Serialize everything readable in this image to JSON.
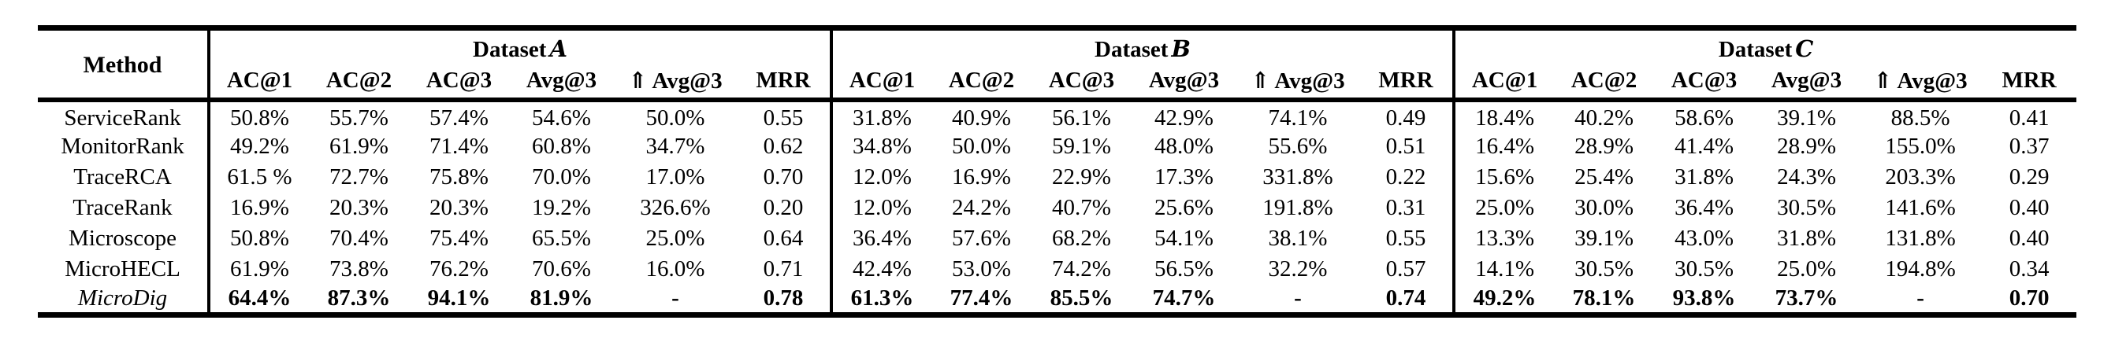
{
  "table": {
    "method_header": "Method",
    "groups": [
      {
        "prefix": "Dataset",
        "letter": "A"
      },
      {
        "prefix": "Dataset",
        "letter": "B"
      },
      {
        "prefix": "Dataset",
        "letter": "C"
      }
    ],
    "metric_headers": [
      "AC@1",
      "AC@2",
      "AC@3",
      "Avg@3",
      "⇑ Avg@3",
      "MRR"
    ],
    "rows": [
      {
        "method": "ServiceRank",
        "italic": false,
        "bold": false,
        "A": [
          "50.8%",
          "55.7%",
          "57.4%",
          "54.6%",
          "50.0%",
          "0.55"
        ],
        "B": [
          "31.8%",
          "40.9%",
          "56.1%",
          "42.9%",
          "74.1%",
          "0.49"
        ],
        "C": [
          "18.4%",
          "40.2%",
          "58.6%",
          "39.1%",
          "88.5%",
          "0.41"
        ]
      },
      {
        "method": "MonitorRank",
        "italic": false,
        "bold": false,
        "A": [
          "49.2%",
          "61.9%",
          "71.4%",
          "60.8%",
          "34.7%",
          "0.62"
        ],
        "B": [
          "34.8%",
          "50.0%",
          "59.1%",
          "48.0%",
          "55.6%",
          "0.51"
        ],
        "C": [
          "16.4%",
          "28.9%",
          "41.4%",
          "28.9%",
          "155.0%",
          "0.37"
        ]
      },
      {
        "method": "TraceRCA",
        "italic": false,
        "bold": false,
        "A": [
          "61.5 %",
          "72.7%",
          "75.8%",
          "70.0%",
          "17.0%",
          "0.70"
        ],
        "B": [
          "12.0%",
          "16.9%",
          "22.9%",
          "17.3%",
          "331.8%",
          "0.22"
        ],
        "C": [
          "15.6%",
          "25.4%",
          "31.8%",
          "24.3%",
          "203.3%",
          "0.29"
        ]
      },
      {
        "method": "TraceRank",
        "italic": false,
        "bold": false,
        "A": [
          "16.9%",
          "20.3%",
          "20.3%",
          "19.2%",
          "326.6%",
          "0.20"
        ],
        "B": [
          "12.0%",
          "24.2%",
          "40.7%",
          "25.6%",
          "191.8%",
          "0.31"
        ],
        "C": [
          "25.0%",
          "30.0%",
          "36.4%",
          "30.5%",
          "141.6%",
          "0.40"
        ]
      },
      {
        "method": "Microscope",
        "italic": false,
        "bold": false,
        "A": [
          "50.8%",
          "70.4%",
          "75.4%",
          "65.5%",
          "25.0%",
          "0.64"
        ],
        "B": [
          "36.4%",
          "57.6%",
          "68.2%",
          "54.1%",
          "38.1%",
          "0.55"
        ],
        "C": [
          "13.3%",
          "39.1%",
          "43.0%",
          "31.8%",
          "131.8%",
          "0.40"
        ]
      },
      {
        "method": "MicroHECL",
        "italic": false,
        "bold": false,
        "A": [
          "61.9%",
          "73.8%",
          "76.2%",
          "70.6%",
          "16.0%",
          "0.71"
        ],
        "B": [
          "42.4%",
          "53.0%",
          "74.2%",
          "56.5%",
          "32.2%",
          "0.57"
        ],
        "C": [
          "14.1%",
          "30.5%",
          "30.5%",
          "25.0%",
          "194.8%",
          "0.34"
        ]
      },
      {
        "method": "MicroDig",
        "italic": true,
        "bold": true,
        "A": [
          "64.4%",
          "87.3%",
          "94.1%",
          "81.9%",
          "-",
          "0.78"
        ],
        "B": [
          "61.3%",
          "77.4%",
          "85.5%",
          "74.7%",
          "-",
          "0.74"
        ],
        "C": [
          "49.2%",
          "78.1%",
          "93.8%",
          "73.7%",
          "-",
          "0.70"
        ]
      }
    ]
  }
}
